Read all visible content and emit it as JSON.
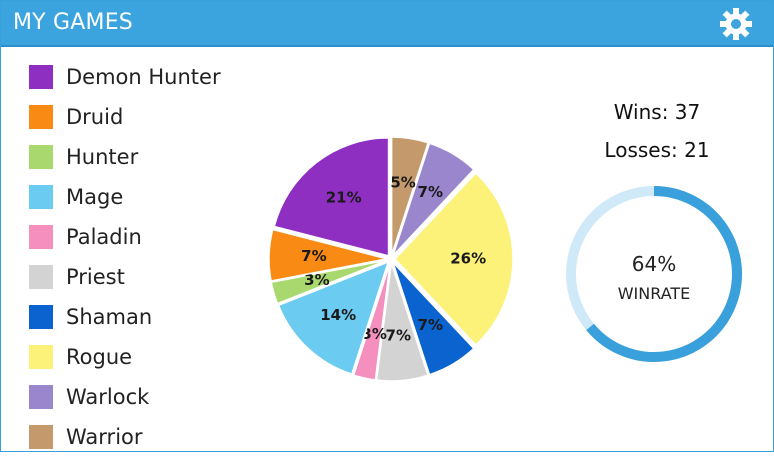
{
  "header": {
    "title": "MY GAMES",
    "settings_icon": "gear-icon"
  },
  "colors": {
    "header_bg": "#3ba4de",
    "ring_track": "#cfe9f8",
    "ring_fill": "#3aa0dc"
  },
  "stats": {
    "wins_label": "Wins: 37",
    "losses_label": "Losses: 21",
    "wins": 37,
    "losses": 21,
    "winrate_text": "64%",
    "winrate_label": "WINRATE",
    "winrate": 0.64
  },
  "chart_data": {
    "type": "pie",
    "legend_position": "left",
    "slices": [
      {
        "name": "Warrior",
        "value": 5,
        "label": "5%",
        "color": "#c49a6c"
      },
      {
        "name": "Warlock",
        "value": 7,
        "label": "7%",
        "color": "#9a86cc"
      },
      {
        "name": "Rogue",
        "value": 26,
        "label": "26%",
        "color": "#fcf27a"
      },
      {
        "name": "Shaman",
        "value": 7,
        "label": "7%",
        "color": "#0b63cf"
      },
      {
        "name": "Priest",
        "value": 7,
        "label": "7%",
        "color": "#d3d3d3"
      },
      {
        "name": "Paladin",
        "value": 3,
        "label": "3%",
        "color": "#f58fbd"
      },
      {
        "name": "Mage",
        "value": 14,
        "label": "14%",
        "color": "#6ccbf0"
      },
      {
        "name": "Hunter",
        "value": 3,
        "label": "3%",
        "color": "#a9d86e"
      },
      {
        "name": "Druid",
        "value": 7,
        "label": "7%",
        "color": "#f98a14"
      },
      {
        "name": "Demon Hunter",
        "value": 21,
        "label": "21%",
        "color": "#8e2fc2"
      }
    ],
    "legend": [
      {
        "name": "Demon Hunter",
        "color": "#8e2fc2"
      },
      {
        "name": "Druid",
        "color": "#f98a14"
      },
      {
        "name": "Hunter",
        "color": "#a9d86e"
      },
      {
        "name": "Mage",
        "color": "#6ccbf0"
      },
      {
        "name": "Paladin",
        "color": "#f58fbd"
      },
      {
        "name": "Priest",
        "color": "#d3d3d3"
      },
      {
        "name": "Shaman",
        "color": "#0b63cf"
      },
      {
        "name": "Rogue",
        "color": "#fcf27a"
      },
      {
        "name": "Warlock",
        "color": "#9a86cc"
      },
      {
        "name": "Warrior",
        "color": "#c49a6c"
      }
    ]
  }
}
